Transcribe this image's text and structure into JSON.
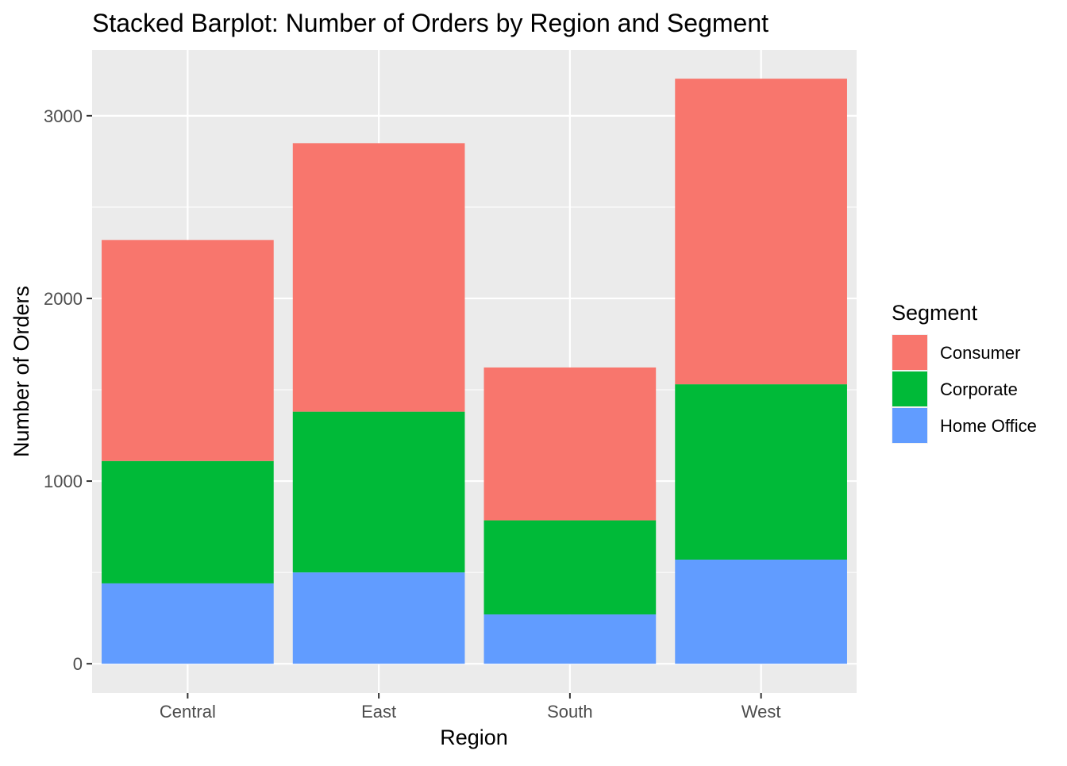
{
  "chart_data": {
    "type": "bar",
    "stacked": true,
    "title": "Stacked Barplot: Number of Orders by Region and Segment",
    "xlabel": "Region",
    "ylabel": "Number of Orders",
    "categories": [
      "Central",
      "East",
      "South",
      "West"
    ],
    "ylim": [
      -160,
      3360
    ],
    "yticks": [
      0,
      1000,
      2000,
      3000
    ],
    "grid": true,
    "legend": {
      "title": "Segment",
      "position": "right"
    },
    "series": [
      {
        "name": "Home Office",
        "color": "#619CFF",
        "values": [
          440,
          500,
          270,
          570
        ]
      },
      {
        "name": "Corporate",
        "color": "#00BA38",
        "values": [
          670,
          880,
          515,
          960
        ]
      },
      {
        "name": "Consumer",
        "color": "#F8766D",
        "values": [
          1210,
          1470,
          837,
          1673
        ]
      }
    ],
    "legend_order": [
      "Consumer",
      "Corporate",
      "Home Office"
    ],
    "panel_background": "#EBEBEB",
    "grid_color": "#FFFFFF"
  }
}
